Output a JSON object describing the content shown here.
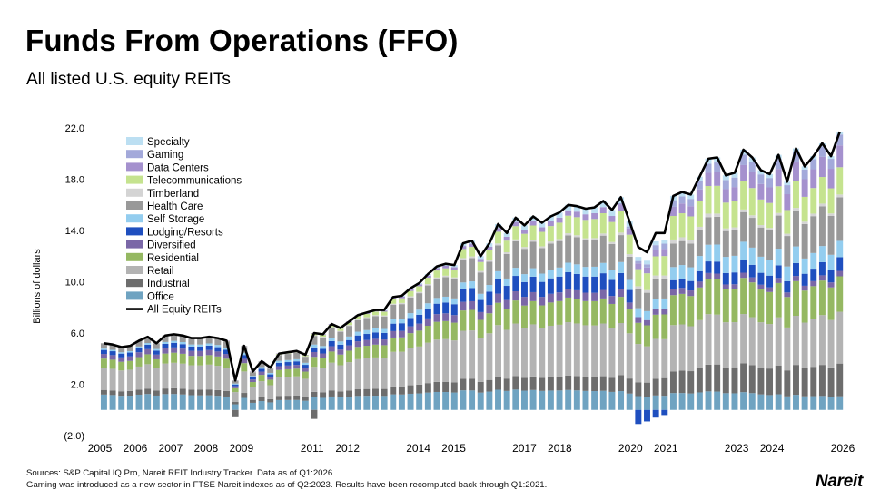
{
  "title": "Funds From Operations (FFO)",
  "subtitle": "All listed U.S. equity REITs",
  "footnotes": [
    "Sources: S&P Capital IQ Pro, Nareit REIT Industry Tracker. Data as of Q1:2026.",
    "Gaming was introduced as a new sector in FTSE Nareit indexes as of Q2:2023. Results have been recomputed back through Q1:2021."
  ],
  "logo_text": "Nareit",
  "chart_data": {
    "type": "bar",
    "stacked": true,
    "ylabel": "Billions of dollars",
    "ylim": [
      -2.0,
      22.0
    ],
    "yticks": [
      -2.0,
      2.0,
      6.0,
      10.0,
      14.0,
      18.0,
      22.0
    ],
    "ytick_labels": [
      "(2.0)",
      "2.0",
      "6.0",
      "10.0",
      "14.0",
      "18.0",
      "22.0"
    ],
    "xlim_years": [
      2005,
      2026
    ],
    "xtick_labels": [
      "2005",
      "2006",
      "2007",
      "2008",
      "2009",
      "2011",
      "2012",
      "2014",
      "2015",
      "2017",
      "2018",
      "2020",
      "2021",
      "2023",
      "2024",
      "2026"
    ],
    "xtick_years": [
      2005.0,
      2006.0,
      2007.0,
      2008.0,
      2009.0,
      2011.0,
      2012.0,
      2014.0,
      2015.0,
      2017.0,
      2018.0,
      2020.0,
      2021.0,
      2023.0,
      2024.0,
      2026.0
    ],
    "legend_position": "top-left",
    "grid": false,
    "series": [
      {
        "name": "Office",
        "color": "#6fa3c1"
      },
      {
        "name": "Industrial",
        "color": "#6d6d6d"
      },
      {
        "name": "Retail",
        "color": "#b3b3b3"
      },
      {
        "name": "Residential",
        "color": "#95b862"
      },
      {
        "name": "Diversified",
        "color": "#7a67a7"
      },
      {
        "name": "Lodging/Resorts",
        "color": "#1f4fbf"
      },
      {
        "name": "Self Storage",
        "color": "#93cdef"
      },
      {
        "name": "Health Care",
        "color": "#999999"
      },
      {
        "name": "Timberland",
        "color": "#d4d4d4"
      },
      {
        "name": "Telecommunications",
        "color": "#c5e38f"
      },
      {
        "name": "Data Centers",
        "color": "#a591ce"
      },
      {
        "name": "Gaming",
        "color": "#a3a9da"
      },
      {
        "name": "Specialty",
        "color": "#bcdff2"
      }
    ],
    "total_series": {
      "name": "All Equity REITs",
      "color": "#000000"
    },
    "total_ffo": [
      5.2,
      5.1,
      4.9,
      5.0,
      5.4,
      5.7,
      5.2,
      5.8,
      5.9,
      5.8,
      5.6,
      5.6,
      5.7,
      5.6,
      5.4,
      2.3,
      5.0,
      3.0,
      3.8,
      3.3,
      4.4,
      4.5,
      4.6,
      4.3,
      6.0,
      5.9,
      6.7,
      6.4,
      6.9,
      7.4,
      7.6,
      7.8,
      7.8,
      8.8,
      8.9,
      9.5,
      9.9,
      10.6,
      11.2,
      11.4,
      11.3,
      13.0,
      13.2,
      12.0,
      13.0,
      14.5,
      13.8,
      15.0,
      14.4,
      15.1,
      14.6,
      15.1,
      15.4,
      16.0,
      15.9,
      15.7,
      15.8,
      16.3,
      15.6,
      16.6,
      14.7,
      12.7,
      12.3,
      13.8,
      13.8,
      16.7,
      17.0,
      16.8,
      18.2,
      19.6,
      19.7,
      18.3,
      18.5,
      20.3,
      19.7,
      18.7,
      18.4,
      19.9,
      17.8,
      20.4,
      19.0,
      19.8,
      20.8,
      19.8,
      21.7
    ],
    "start_year": 2005.0,
    "quarter_step": 0.25,
    "segments_sample_billions_q1_2026": {
      "Office": 1.1,
      "Industrial": 2.6,
      "Retail": 4.0,
      "Residential": 2.7,
      "Diversified": 0.4,
      "Lodging/Resorts": 1.0,
      "Self Storage": 1.3,
      "Health Care": 3.4,
      "Timberland": 0.3,
      "Telecommunications": 2.1,
      "Data Centers": 1.7,
      "Gaming": 0.8,
      "Specialty": 0.3
    }
  }
}
